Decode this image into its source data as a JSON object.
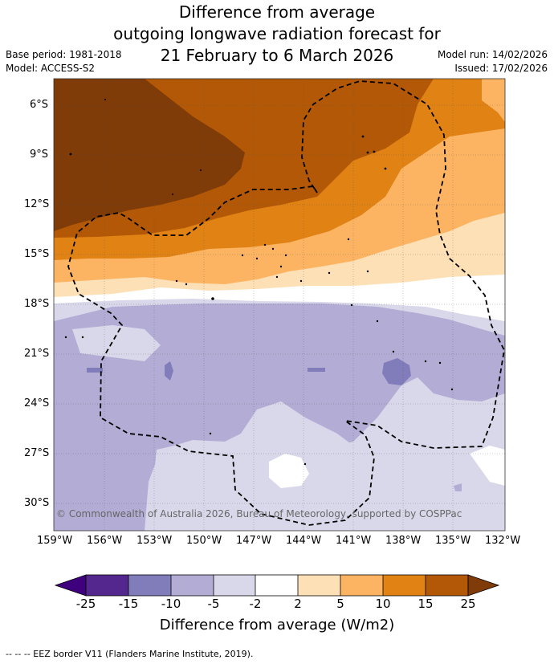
{
  "title": {
    "line1": "Difference from average",
    "line2": "outgoing longwave radiation forecast for",
    "line3": "21 February to 6 March 2026"
  },
  "meta": {
    "base_period": "Base period: 1981-2018",
    "model": "Model: ACCESS-S2",
    "model_run": "Model run: 14/02/2026",
    "issued": "Issued: 17/02/2026"
  },
  "map": {
    "lat_labels": [
      "6°S",
      "9°S",
      "12°S",
      "15°S",
      "18°S",
      "21°S",
      "24°S",
      "27°S",
      "30°S"
    ],
    "lon_labels": [
      "159°W",
      "156°W",
      "153°W",
      "150°W",
      "147°W",
      "144°W",
      "141°W",
      "138°W",
      "135°W",
      "132°W"
    ],
    "copyright": "© Commonwealth of Australia 2026, Bureau of Meteorology, supported by COSPPac"
  },
  "colorbar": {
    "ticks": [
      "-25",
      "-15",
      "-10",
      "-5",
      "-2",
      "2",
      "5",
      "10",
      "15",
      "25"
    ],
    "colors": [
      "#3f007d",
      "#54278f",
      "#807dba",
      "#b3acd4",
      "#d9d8ea",
      "#ffffff",
      "#fde0b6",
      "#fdb462",
      "#e08214",
      "#b35806",
      "#7f3b08"
    ],
    "title": "Difference from average (W/m2)"
  },
  "footnote": "--  --  -- EEZ border V11 (Flanders Marine Institute, 2019)."
}
